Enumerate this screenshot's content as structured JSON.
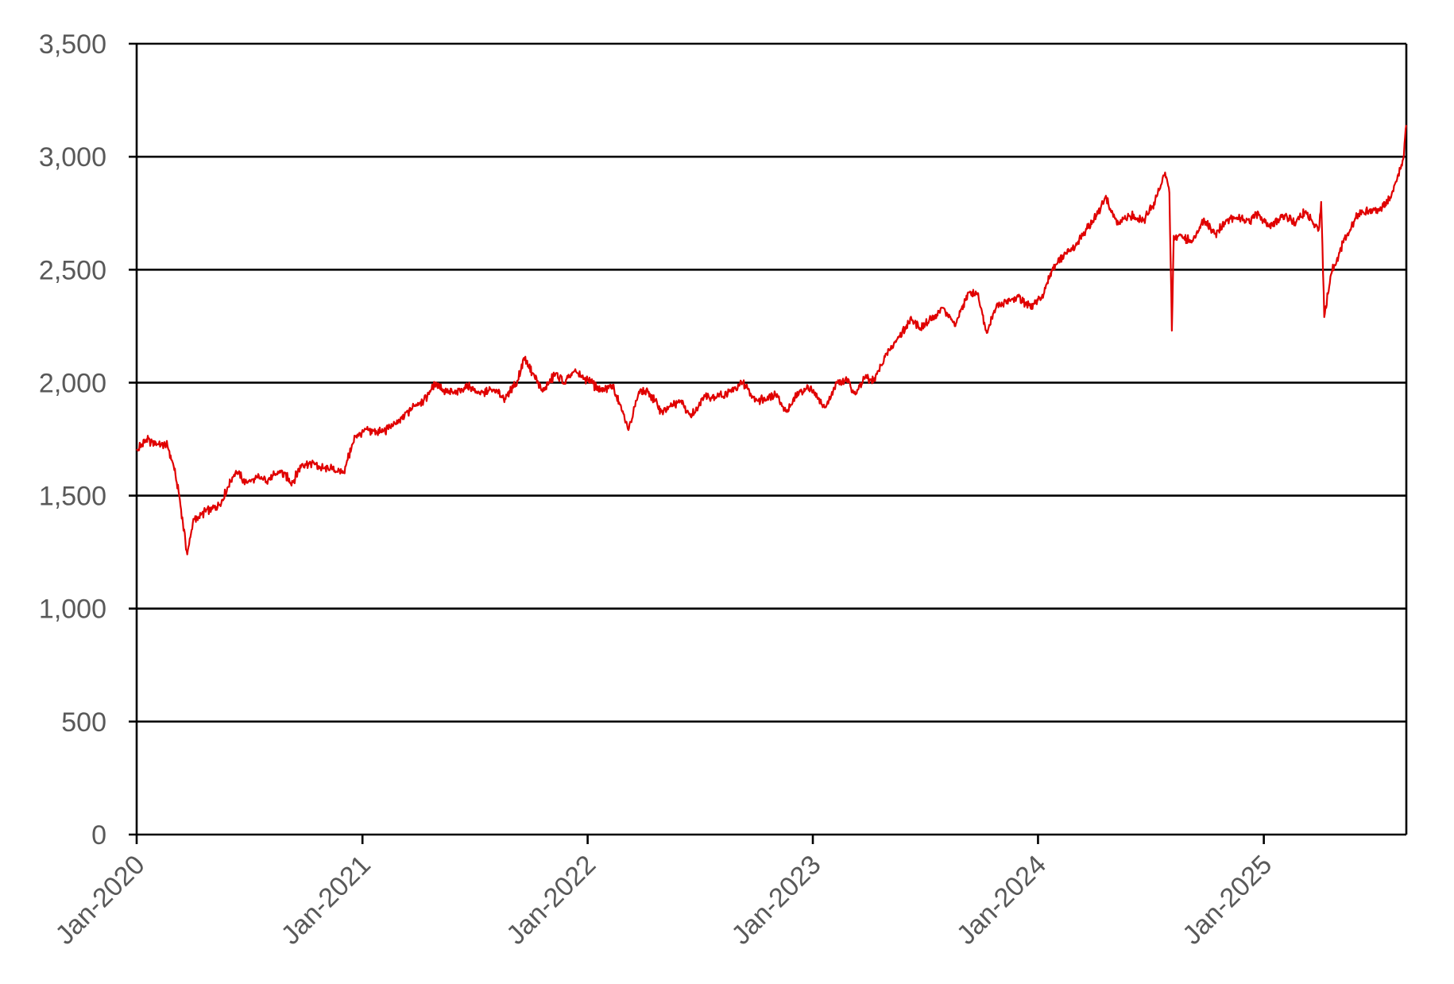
{
  "chart_data": {
    "type": "line",
    "title": "",
    "xlabel": "",
    "ylabel": "",
    "x_tick_labels": [
      "Jan-2020",
      "Jan-2021",
      "Jan-2022",
      "Jan-2023",
      "Jan-2024",
      "Jan-2025"
    ],
    "y_tick_labels": [
      "0",
      "500",
      "1,000",
      "1,500",
      "2,000",
      "2,500",
      "3,000",
      "3,500"
    ],
    "ylim": [
      0,
      3500
    ],
    "xlim": [
      "2020-01-01",
      "2025-08-20"
    ],
    "grid": "horizontal",
    "legend": "none",
    "colors": {
      "line": "#e00000",
      "grid": "#000000",
      "tick_text": "#595959"
    },
    "series": [
      {
        "x": [
          "2020-01-01",
          "2020-01-15",
          "2020-02-01",
          "2020-02-20",
          "2020-03-01",
          "2020-03-10",
          "2020-03-16",
          "2020-03-23",
          "2020-04-01",
          "2020-04-15",
          "2020-05-01",
          "2020-05-15",
          "2020-06-01",
          "2020-06-10",
          "2020-06-25",
          "2020-07-15",
          "2020-08-01",
          "2020-08-20",
          "2020-09-10",
          "2020-09-25",
          "2020-10-15",
          "2020-10-30",
          "2020-11-10",
          "2020-12-01",
          "2020-12-20",
          "2021-01-10",
          "2021-02-01",
          "2021-02-20",
          "2021-03-10",
          "2021-03-25",
          "2021-04-10",
          "2021-05-01",
          "2021-05-15",
          "2021-06-01",
          "2021-06-20",
          "2021-07-10",
          "2021-08-01",
          "2021-08-20",
          "2021-09-10",
          "2021-09-20",
          "2021-10-05",
          "2021-10-20",
          "2021-11-10",
          "2021-11-25",
          "2021-12-10",
          "2022-01-01",
          "2022-01-25",
          "2022-02-10",
          "2022-03-01",
          "2022-03-08",
          "2022-03-25",
          "2022-04-10",
          "2022-05-01",
          "2022-05-12",
          "2022-06-01",
          "2022-06-17",
          "2022-07-10",
          "2022-08-01",
          "2022-08-16",
          "2022-09-10",
          "2022-09-30",
          "2022-10-15",
          "2022-11-01",
          "2022-11-20",
          "2022-12-10",
          "2022-12-28",
          "2023-01-20",
          "2023-02-10",
          "2023-02-25",
          "2023-03-12",
          "2023-03-25",
          "2023-04-10",
          "2023-05-01",
          "2023-05-20",
          "2023-06-10",
          "2023-06-25",
          "2023-07-15",
          "2023-08-01",
          "2023-08-20",
          "2023-09-10",
          "2023-09-25",
          "2023-10-10",
          "2023-10-25",
          "2023-11-10",
          "2023-11-30",
          "2023-12-20",
          "2024-01-10",
          "2024-01-25",
          "2024-02-15",
          "2024-03-01",
          "2024-03-20",
          "2024-04-05",
          "2024-04-19",
          "2024-05-10",
          "2024-06-01",
          "2024-06-20",
          "2024-07-05",
          "2024-07-15",
          "2024-07-25",
          "2024-08-01",
          "2024-08-05",
          "2024-08-08",
          "2024-08-20",
          "2024-09-06",
          "2024-09-25",
          "2024-10-15",
          "2024-11-01",
          "2024-11-20",
          "2024-12-10",
          "2024-12-20",
          "2025-01-10",
          "2025-02-01",
          "2025-02-20",
          "2025-03-10",
          "2025-03-25",
          "2025-04-01",
          "2025-04-04",
          "2025-04-09",
          "2025-04-20",
          "2025-05-10",
          "2025-06-01",
          "2025-06-20",
          "2025-07-10",
          "2025-07-25",
          "2025-08-05",
          "2025-08-15",
          "2025-08-20"
        ],
        "y": [
          1700,
          1745,
          1735,
          1720,
          1630,
          1500,
          1380,
          1240,
          1380,
          1420,
          1440,
          1460,
          1560,
          1610,
          1560,
          1580,
          1570,
          1610,
          1560,
          1640,
          1640,
          1620,
          1620,
          1600,
          1760,
          1790,
          1780,
          1810,
          1850,
          1900,
          1920,
          2000,
          1960,
          1950,
          1990,
          1950,
          1970,
          1930,
          2010,
          2110,
          2040,
          1960,
          2040,
          2000,
          2050,
          2010,
          1960,
          1990,
          1860,
          1790,
          1960,
          1960,
          1870,
          1890,
          1920,
          1850,
          1940,
          1940,
          1950,
          2000,
          1920,
          1930,
          1950,
          1870,
          1960,
          1980,
          1890,
          2000,
          2010,
          1950,
          2020,
          2010,
          2130,
          2200,
          2280,
          2240,
          2290,
          2330,
          2250,
          2400,
          2390,
          2220,
          2330,
          2360,
          2380,
          2330,
          2390,
          2510,
          2570,
          2600,
          2680,
          2740,
          2820,
          2700,
          2740,
          2720,
          2780,
          2850,
          2930,
          2840,
          2230,
          2650,
          2650,
          2620,
          2720,
          2660,
          2720,
          2730,
          2710,
          2750,
          2690,
          2740,
          2710,
          2760,
          2690,
          2690,
          2800,
          2290,
          2480,
          2620,
          2740,
          2760,
          2770,
          2820,
          2900,
          2990,
          3140
        ]
      }
    ]
  }
}
